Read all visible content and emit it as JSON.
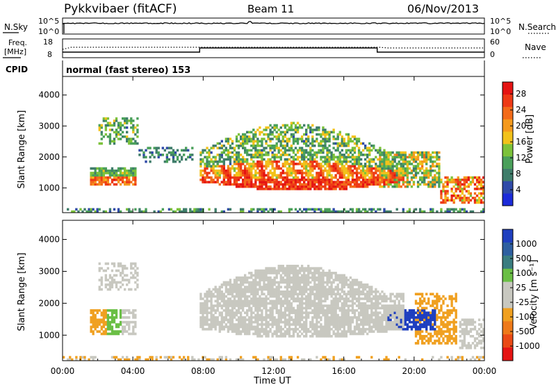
{
  "header": {
    "title": "Pykkvibaer (fitACF)",
    "beam": "Beam 11",
    "date": "06/Nov/2013"
  },
  "top_panels": {
    "nsky": {
      "label": "N.Sky",
      "tick_high": "10^5",
      "tick_low": "10^0"
    },
    "nsearch": {
      "label": "N.Search",
      "tick_high": "10^5",
      "tick_low": "10^0"
    },
    "freq": {
      "label_line1": "Freq.",
      "label_line2": "[MHz]",
      "tick_high": "18",
      "tick_low": "8"
    },
    "nave": {
      "label": "Nave",
      "tick_high": "60",
      "tick_low": "0"
    },
    "cpid": {
      "label": "CPID",
      "value": "normal (fast stereo) 153"
    }
  },
  "colors": {
    "power_scale": [
      "#1c2bd9",
      "#2f4aa8",
      "#3f7d6a",
      "#4aa05a",
      "#7cc23a",
      "#f2c21b",
      "#f59a1d",
      "#f36b1a",
      "#ee3a16",
      "#e51413"
    ],
    "velocity_scale": [
      "#1f3fbf",
      "#2e5fa0",
      "#3a7d80",
      "#6abf45",
      "#c8c8c0",
      "#c8c8c0",
      "#f0a020",
      "#ee7a1a",
      "#ea4a16",
      "#e51413"
    ]
  },
  "chart_data": [
    {
      "type": "heatmap",
      "name": "power",
      "ylabel": "Slant Range [km]",
      "xlabel": "",
      "x_ticks": [
        "00:00",
        "04:00",
        "08:00",
        "12:00",
        "16:00",
        "20:00",
        "00:00"
      ],
      "x_range_hours": [
        0,
        24
      ],
      "y_ticks": [
        1000,
        2000,
        3000,
        4000
      ],
      "ylim": [
        200,
        4600
      ],
      "colorbar": {
        "label": "Power [dB]",
        "ticks": [
          4,
          8,
          12,
          16,
          20,
          24,
          28
        ],
        "range": [
          0,
          31
        ]
      },
      "grid": false
    },
    {
      "type": "heatmap",
      "name": "velocity",
      "ylabel": "Slant Range [km]",
      "xlabel": "Time UT",
      "x_ticks": [
        "00:00",
        "04:00",
        "08:00",
        "12:00",
        "16:00",
        "20:00",
        "00:00"
      ],
      "x_range_hours": [
        0,
        24
      ],
      "y_ticks": [
        1000,
        2000,
        3000,
        4000
      ],
      "ylim": [
        200,
        4600
      ],
      "colorbar": {
        "label": "Velocity [m s⁻¹]",
        "ticks": [
          1000,
          500,
          100,
          25,
          -25,
          -100,
          -500,
          -1000
        ]
      },
      "grid": false
    }
  ]
}
